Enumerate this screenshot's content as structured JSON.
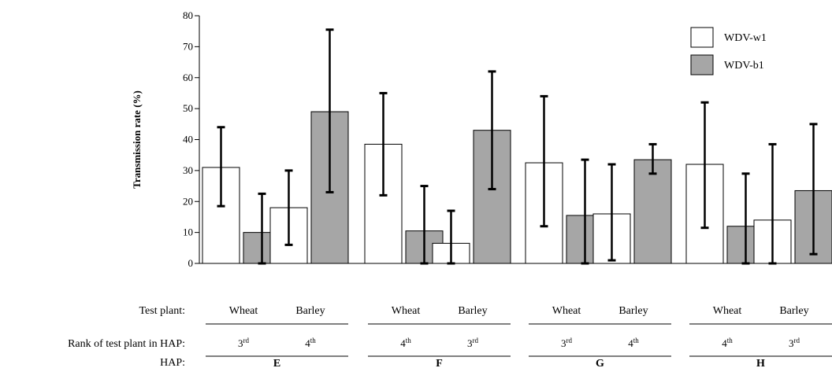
{
  "chart_data": {
    "type": "bar",
    "ylabel": "Transmission rate (%)",
    "ylim": [
      0,
      80
    ],
    "yticks": [
      0,
      10,
      20,
      30,
      40,
      50,
      60,
      70,
      80
    ],
    "grid": false,
    "legend_position": "top-right",
    "series": [
      {
        "name": "WDV-w1",
        "color": "#ffffff"
      },
      {
        "name": "WDV-b1",
        "color": "#a6a6a6"
      }
    ],
    "row_labels": {
      "test_plant": "Test plant:",
      "rank": "Rank of test plant in HAP:",
      "hap": "HAP:"
    },
    "groups": [
      {
        "hap": "E",
        "subgroups": [
          {
            "test_plant": "Wheat",
            "rank_num": "3",
            "rank_sup": "rd",
            "bars": [
              {
                "series": 0,
                "value": 31,
                "err_low": 18.5,
                "err_high": 44
              },
              {
                "series": 1,
                "value": 10,
                "err_low": 0,
                "err_high": 22.5
              }
            ]
          },
          {
            "test_plant": "Barley",
            "rank_num": "4",
            "rank_sup": "th",
            "bars": [
              {
                "series": 0,
                "value": 18,
                "err_low": 6,
                "err_high": 30
              },
              {
                "series": 1,
                "value": 49,
                "err_low": 23,
                "err_high": 75.5
              }
            ]
          }
        ]
      },
      {
        "hap": "F",
        "subgroups": [
          {
            "test_plant": "Wheat",
            "rank_num": "4",
            "rank_sup": "th",
            "bars": [
              {
                "series": 0,
                "value": 38.5,
                "err_low": 22,
                "err_high": 55
              },
              {
                "series": 1,
                "value": 10.5,
                "err_low": 0,
                "err_high": 25
              }
            ]
          },
          {
            "test_plant": "Barley",
            "rank_num": "3",
            "rank_sup": "rd",
            "bars": [
              {
                "series": 0,
                "value": 6.5,
                "err_low": 0,
                "err_high": 17
              },
              {
                "series": 1,
                "value": 43,
                "err_low": 24,
                "err_high": 62
              }
            ]
          }
        ]
      },
      {
        "hap": "G",
        "subgroups": [
          {
            "test_plant": "Wheat",
            "rank_num": "3",
            "rank_sup": "rd",
            "bars": [
              {
                "series": 0,
                "value": 32.5,
                "err_low": 12,
                "err_high": 54
              },
              {
                "series": 1,
                "value": 15.5,
                "err_low": 0,
                "err_high": 33.5
              }
            ]
          },
          {
            "test_plant": "Barley",
            "rank_num": "4",
            "rank_sup": "th",
            "bars": [
              {
                "series": 0,
                "value": 16,
                "err_low": 1,
                "err_high": 32
              },
              {
                "series": 1,
                "value": 33.5,
                "err_low": 29,
                "err_high": 38.5
              }
            ]
          }
        ]
      },
      {
        "hap": "H",
        "subgroups": [
          {
            "test_plant": "Wheat",
            "rank_num": "4",
            "rank_sup": "th",
            "bars": [
              {
                "series": 0,
                "value": 32,
                "err_low": 11.5,
                "err_high": 52
              },
              {
                "series": 1,
                "value": 12,
                "err_low": 0,
                "err_high": 29
              }
            ]
          },
          {
            "test_plant": "Barley",
            "rank_num": "3",
            "rank_sup": "rd",
            "bars": [
              {
                "series": 0,
                "value": 14,
                "err_low": 0,
                "err_high": 38.5
              },
              {
                "series": 1,
                "value": 23.5,
                "err_low": 3,
                "err_high": 45
              }
            ]
          }
        ]
      }
    ]
  }
}
